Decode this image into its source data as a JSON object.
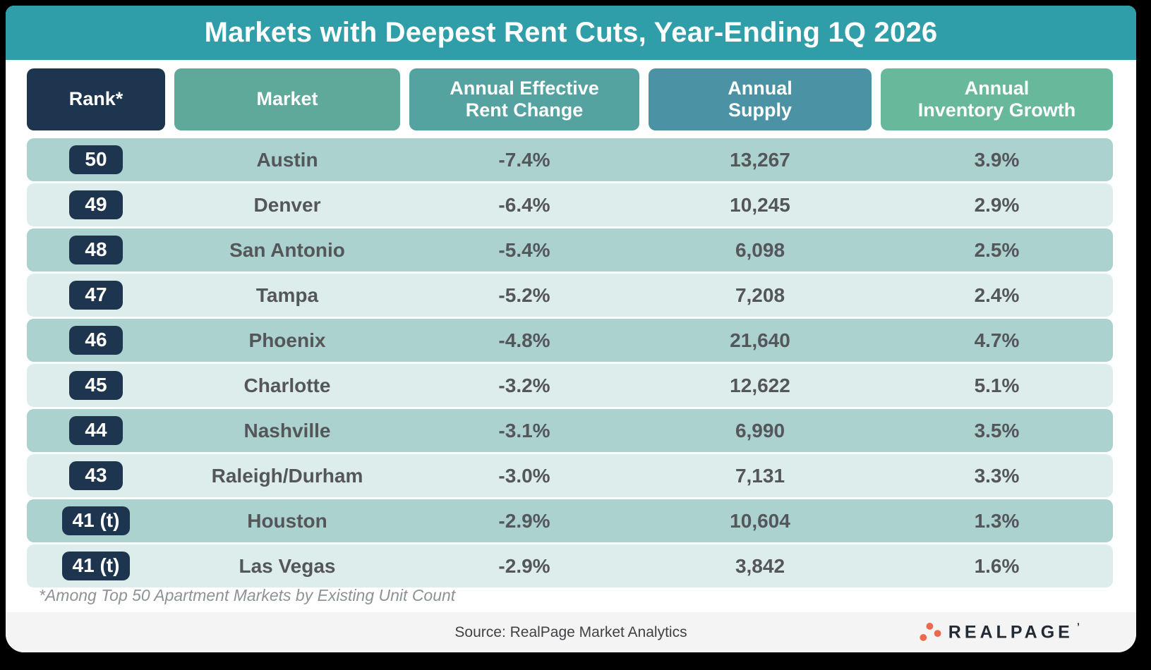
{
  "title": "Markets with Deepest Rent Cuts, Year-Ending 1Q 2026",
  "theme": {
    "title_bar": "#2f9ea8",
    "rank_navy": "#1e3550",
    "row_odd": "#abd2ce",
    "row_even": "#ddedeb",
    "row_text": "#54565a",
    "footer_bg": "#f4f4f5",
    "logo_dot": "#ec6a4b",
    "logo_text": "#222b33"
  },
  "columns": [
    {
      "id": "rank",
      "label": "Rank*",
      "color": "#1e3550"
    },
    {
      "id": "market",
      "label": "Market",
      "color": "#5fa99a"
    },
    {
      "id": "rent-change",
      "label": "Annual Effective\nRent Change",
      "color": "#55a3a1"
    },
    {
      "id": "supply",
      "label": "Annual\nSupply",
      "color": "#4b93a4"
    },
    {
      "id": "inventory-growth",
      "label": "Annual\nInventory Growth",
      "color": "#68b99c"
    }
  ],
  "rows": [
    {
      "rank": "50",
      "market": "Austin",
      "rent_change": "-7.4%",
      "supply": "13,267",
      "inventory_growth": "3.9%"
    },
    {
      "rank": "49",
      "market": "Denver",
      "rent_change": "-6.4%",
      "supply": "10,245",
      "inventory_growth": "2.9%"
    },
    {
      "rank": "48",
      "market": "San Antonio",
      "rent_change": "-5.4%",
      "supply": "6,098",
      "inventory_growth": "2.5%"
    },
    {
      "rank": "47",
      "market": "Tampa",
      "rent_change": "-5.2%",
      "supply": "7,208",
      "inventory_growth": "2.4%"
    },
    {
      "rank": "46",
      "market": "Phoenix",
      "rent_change": "-4.8%",
      "supply": "21,640",
      "inventory_growth": "4.7%"
    },
    {
      "rank": "45",
      "market": "Charlotte",
      "rent_change": "-3.2%",
      "supply": "12,622",
      "inventory_growth": "5.1%"
    },
    {
      "rank": "44",
      "market": "Nashville",
      "rent_change": "-3.1%",
      "supply": "6,990",
      "inventory_growth": "3.5%"
    },
    {
      "rank": "43",
      "market": "Raleigh/Durham",
      "rent_change": "-3.0%",
      "supply": "7,131",
      "inventory_growth": "3.3%"
    },
    {
      "rank": "41 (t)",
      "market": "Houston",
      "rent_change": "-2.9%",
      "supply": "10,604",
      "inventory_growth": "1.3%"
    },
    {
      "rank": "41 (t)",
      "market": "Las Vegas",
      "rent_change": "-2.9%",
      "supply": "3,842",
      "inventory_growth": "1.6%"
    }
  ],
  "footnote": "*Among Top 50 Apartment Markets by Existing Unit Count",
  "footer": {
    "source": "Source: RealPage Market Analytics",
    "logo_text": "REALPAGE",
    "trademark": "’"
  },
  "chart_data": {
    "type": "table",
    "title": "Markets with Deepest Rent Cuts, Year-Ending 1Q 2026",
    "columns": [
      "Rank*",
      "Market",
      "Annual Effective Rent Change",
      "Annual Supply",
      "Annual Inventory Growth"
    ],
    "rows": [
      {
        "rank": "50",
        "market": "Austin",
        "annual_effective_rent_change_pct": -7.4,
        "annual_supply": 13267,
        "annual_inventory_growth_pct": 3.9
      },
      {
        "rank": "49",
        "market": "Denver",
        "annual_effective_rent_change_pct": -6.4,
        "annual_supply": 10245,
        "annual_inventory_growth_pct": 2.9
      },
      {
        "rank": "48",
        "market": "San Antonio",
        "annual_effective_rent_change_pct": -5.4,
        "annual_supply": 6098,
        "annual_inventory_growth_pct": 2.5
      },
      {
        "rank": "47",
        "market": "Tampa",
        "annual_effective_rent_change_pct": -5.2,
        "annual_supply": 7208,
        "annual_inventory_growth_pct": 2.4
      },
      {
        "rank": "46",
        "market": "Phoenix",
        "annual_effective_rent_change_pct": -4.8,
        "annual_supply": 21640,
        "annual_inventory_growth_pct": 4.7
      },
      {
        "rank": "45",
        "market": "Charlotte",
        "annual_effective_rent_change_pct": -3.2,
        "annual_supply": 12622,
        "annual_inventory_growth_pct": 5.1
      },
      {
        "rank": "44",
        "market": "Nashville",
        "annual_effective_rent_change_pct": -3.1,
        "annual_supply": 6990,
        "annual_inventory_growth_pct": 3.5
      },
      {
        "rank": "43",
        "market": "Raleigh/Durham",
        "annual_effective_rent_change_pct": -3.0,
        "annual_supply": 7131,
        "annual_inventory_growth_pct": 3.3
      },
      {
        "rank": "41 (t)",
        "market": "Houston",
        "annual_effective_rent_change_pct": -2.9,
        "annual_supply": 10604,
        "annual_inventory_growth_pct": 1.3
      },
      {
        "rank": "41 (t)",
        "market": "Las Vegas",
        "annual_effective_rent_change_pct": -2.9,
        "annual_supply": 3842,
        "annual_inventory_growth_pct": 1.6
      }
    ],
    "footnote": "*Among Top 50 Apartment Markets by Existing Unit Count",
    "source": "Source: RealPage Market Analytics"
  }
}
